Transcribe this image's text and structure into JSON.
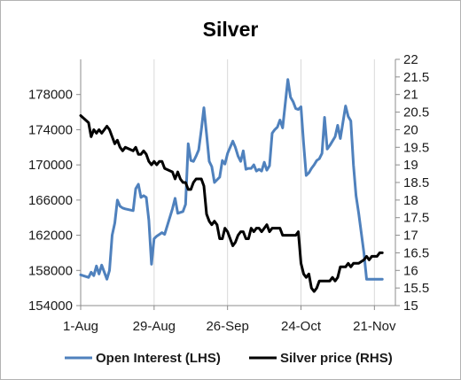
{
  "chart_data": {
    "type": "line",
    "title": "Silver",
    "x_ticks": [
      "1-Aug",
      "29-Aug",
      "26-Sep",
      "24-Oct",
      "21-Nov"
    ],
    "y_left": {
      "ticks": [
        154000,
        158000,
        162000,
        166000,
        170000,
        174000,
        178000
      ],
      "range": [
        154000,
        182000
      ]
    },
    "y_right": {
      "ticks": [
        15,
        15.5,
        16,
        16.5,
        17,
        17.5,
        18,
        18.5,
        19,
        19.5,
        20,
        20.5,
        21,
        21.5,
        22
      ],
      "range": [
        15,
        22
      ]
    },
    "x_range_days": [
      0,
      120
    ],
    "grid": "vertical",
    "legend_position": "bottom",
    "colors": {
      "open_interest": "#4f81bd",
      "silver_price": "#000000"
    },
    "series": [
      {
        "name": "Open Interest (LHS)",
        "axis": "left",
        "color": "#4f81bd",
        "x": [
          0,
          3,
          4,
          5,
          6,
          7,
          8,
          10,
          11,
          12,
          13,
          14,
          15,
          16,
          17,
          20,
          21,
          22,
          23,
          24,
          25,
          26,
          27,
          28,
          29,
          30,
          31,
          32,
          35,
          36,
          37,
          38,
          39,
          40,
          41,
          42,
          43,
          44,
          45,
          46,
          47,
          48,
          49,
          50,
          51,
          52,
          53,
          54,
          55,
          56,
          58,
          59,
          60,
          61,
          62,
          63,
          64,
          65,
          66,
          67,
          68,
          69,
          70,
          71,
          72,
          73,
          74,
          75,
          76,
          77,
          79,
          80,
          81,
          82,
          83,
          84,
          85,
          86,
          87,
          88,
          89,
          90,
          91,
          92,
          93,
          94,
          95,
          96,
          97,
          98,
          99,
          101,
          102,
          103,
          104,
          105,
          106,
          108,
          109,
          110,
          111,
          112,
          113,
          114,
          115
        ],
        "y": [
          157500,
          157200,
          157800,
          157400,
          158500,
          157600,
          158600,
          157000,
          158000,
          162000,
          163400,
          166000,
          165300,
          165100,
          165000,
          164800,
          167300,
          167800,
          166300,
          166500,
          166300,
          163700,
          158700,
          161600,
          161900,
          162100,
          162300,
          162100,
          165000,
          166200,
          164500,
          164600,
          164700,
          165500,
          172400,
          170500,
          170400,
          171000,
          171700,
          174000,
          176500,
          173500,
          170400,
          169800,
          168000,
          168300,
          168600,
          170500,
          170100,
          171300,
          172700,
          172000,
          171000,
          170400,
          171600,
          169500,
          169600,
          169600,
          170000,
          169300,
          169500,
          169300,
          170300,
          169400,
          169900,
          173600,
          174000,
          174300,
          175100,
          174200,
          179700,
          177700,
          177200,
          176400,
          176300,
          176600,
          172400,
          168800,
          169100,
          169600,
          170000,
          170500,
          170700,
          171300,
          175400,
          171800,
          172200,
          172700,
          173200,
          174500,
          173000,
          176700,
          175500,
          175000,
          170000,
          166500,
          164500,
          160000,
          157000,
          157000,
          157000,
          157000,
          157000,
          157000,
          157000
        ]
      },
      {
        "name": "Silver price (RHS)",
        "axis": "right",
        "color": "#000000",
        "x": [
          0,
          3,
          4,
          5,
          6,
          7,
          8,
          10,
          11,
          12,
          13,
          14,
          15,
          16,
          17,
          20,
          21,
          22,
          23,
          24,
          25,
          26,
          27,
          28,
          29,
          30,
          31,
          32,
          35,
          36,
          37,
          38,
          39,
          40,
          41,
          42,
          43,
          44,
          45,
          46,
          47,
          48,
          49,
          50,
          51,
          52,
          53,
          54,
          55,
          56,
          58,
          59,
          60,
          61,
          62,
          63,
          64,
          65,
          66,
          67,
          68,
          69,
          70,
          71,
          72,
          73,
          74,
          75,
          76,
          77,
          79,
          80,
          81,
          82,
          83,
          84,
          85,
          86,
          87,
          88,
          89,
          90,
          91,
          92,
          93,
          94,
          95,
          96,
          97,
          98,
          99,
          101,
          102,
          103,
          104,
          105,
          106,
          108,
          109,
          110,
          111,
          112,
          113,
          114,
          115
        ],
        "y": [
          20.4,
          20.2,
          19.8,
          20.0,
          19.9,
          20.0,
          19.9,
          20.1,
          20.0,
          19.8,
          19.6,
          19.7,
          19.5,
          19.4,
          19.5,
          19.4,
          19.5,
          19.3,
          19.3,
          19.4,
          19.3,
          19.1,
          19.0,
          19.1,
          19.0,
          19.1,
          19.1,
          18.9,
          18.8,
          18.6,
          18.8,
          18.6,
          18.5,
          18.5,
          18.3,
          18.3,
          18.5,
          18.6,
          18.6,
          18.6,
          18.4,
          17.6,
          17.4,
          17.3,
          17.4,
          17.3,
          16.9,
          16.9,
          17.2,
          17.1,
          16.7,
          16.8,
          17.0,
          17.1,
          17.1,
          16.9,
          16.9,
          17.2,
          17.1,
          17.2,
          17.2,
          17.1,
          17.2,
          17.3,
          17.1,
          17.2,
          17.2,
          17.2,
          17.2,
          17.0,
          17.0,
          17.0,
          17.0,
          17.0,
          17.1,
          16.2,
          15.9,
          15.8,
          15.9,
          15.5,
          15.4,
          15.5,
          15.7,
          15.7,
          15.7,
          15.7,
          15.7,
          15.8,
          15.7,
          15.8,
          16.1,
          16.1,
          16.2,
          16.1,
          16.2,
          16.2,
          16.2,
          16.3,
          16.4,
          16.3,
          16.4,
          16.4,
          16.4,
          16.5,
          16.5
        ]
      }
    ]
  }
}
